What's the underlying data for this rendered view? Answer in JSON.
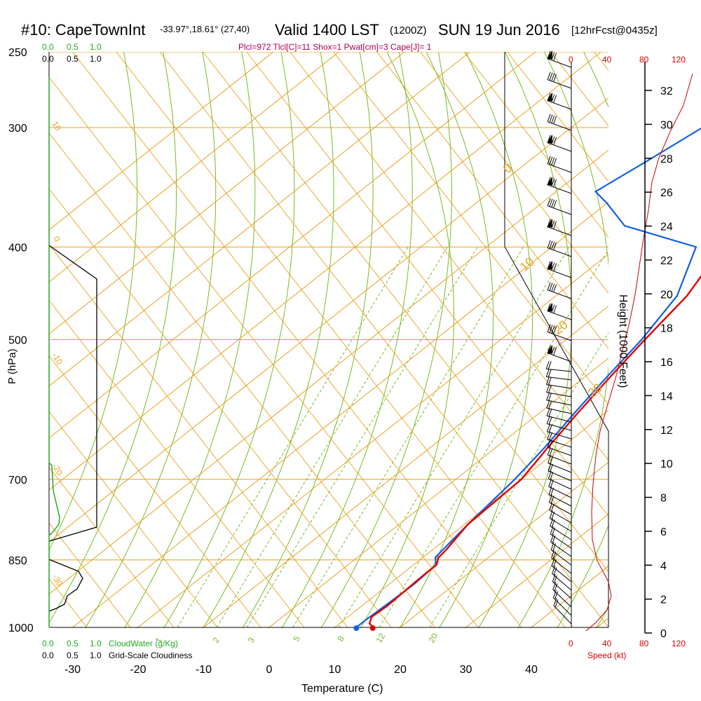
{
  "header": {
    "station": "#10: CapeTownInt",
    "coords": "-33.97°,18.61° (27,40)",
    "valid": "Valid 1400 LST",
    "zulu": "(1200Z)",
    "date": "SUN 19 Jun 2016",
    "forecast": "[12hrFcst@0435z]"
  },
  "params_line": "Plcl=972 Tlcl[C]=11 Shox=1 Pwat[cm]=3 Cape[J]= 1",
  "cloud_water": {
    "top_ticks": [
      "0.0",
      "0.5",
      "1.0"
    ],
    "bottom_ticks": [
      "0.0",
      "0.5",
      "1.0"
    ],
    "label": "CloudWater (g/Kg)",
    "color": "#22aa22"
  },
  "cloudiness": {
    "top_ticks": [
      "0.0",
      "0.5",
      "1.0"
    ],
    "bottom_ticks": [
      "0.0",
      "0.5",
      "1.0"
    ],
    "label": "Grid-Scale Cloudiness"
  },
  "wind_speed_axis": {
    "ticks": [
      "0",
      "40",
      "80",
      "120"
    ],
    "label": "Speed (kt)",
    "color": "#e00000"
  },
  "chart_data": {
    "type": "line",
    "xlabel": "Temperature (C)",
    "ylabel": "P (hPa)",
    "y2label": "Height (1000 Feet)",
    "x_ticks": [
      -30,
      -20,
      -10,
      0,
      10,
      20,
      30,
      40
    ],
    "p_ticks": [
      250,
      300,
      400,
      500,
      700,
      850,
      1000
    ],
    "height_ticks": [
      0,
      2,
      4,
      6,
      8,
      10,
      12,
      14,
      16,
      18,
      20,
      22,
      24,
      26,
      28,
      30,
      32
    ],
    "isotherm_labels": [
      "10",
      "0",
      "-10",
      "-20",
      "-30",
      "0",
      "10",
      "20",
      "30"
    ],
    "mixing_ratio_labels": [
      "1",
      "2",
      "3",
      "5",
      "8",
      "12",
      "20"
    ],
    "colors": {
      "temperature": "#e00000",
      "dewpoint": "#1060e0",
      "isotherm": "#e8a020",
      "adiabat": "#77bb22",
      "cloudiness": "#000000",
      "cloudwater": "#22aa22",
      "wind_speed": "#cc0000"
    },
    "series": [
      {
        "id": "temperature",
        "points": [
          [
            15.8,
            1000
          ],
          [
            14.5,
            990
          ],
          [
            13.6,
            975
          ],
          [
            13.9,
            950
          ],
          [
            13.6,
            900
          ],
          [
            13.5,
            880
          ],
          [
            13.5,
            860
          ],
          [
            12.4,
            845
          ],
          [
            12.1,
            830
          ],
          [
            10.5,
            780
          ],
          [
            10.0,
            700
          ],
          [
            8.0,
            650
          ],
          [
            6.0,
            600
          ],
          [
            4.0,
            550
          ],
          [
            2.0,
            500
          ],
          [
            0.0,
            450
          ],
          [
            -4.0,
            400
          ],
          [
            -9.0,
            350
          ],
          [
            -14.0,
            300
          ],
          [
            -20.0,
            265
          ]
        ]
      },
      {
        "id": "dewpoint",
        "points": [
          [
            13.3,
            1000
          ],
          [
            13.3,
            985
          ],
          [
            13.5,
            950
          ],
          [
            13.8,
            900
          ],
          [
            13.4,
            860
          ],
          [
            11.9,
            845
          ],
          [
            10.5,
            780
          ],
          [
            9.0,
            700
          ],
          [
            7.5,
            650
          ],
          [
            5.5,
            600
          ],
          [
            3.5,
            550
          ],
          [
            1.5,
            500
          ],
          [
            -1.5,
            450
          ],
          [
            -8.0,
            400
          ],
          [
            -23.0,
            380
          ],
          [
            -30.0,
            360
          ],
          [
            -34.0,
            350
          ],
          [
            -32.0,
            325
          ],
          [
            -30.0,
            300
          ],
          [
            -28.0,
            265
          ]
        ]
      }
    ]
  }
}
